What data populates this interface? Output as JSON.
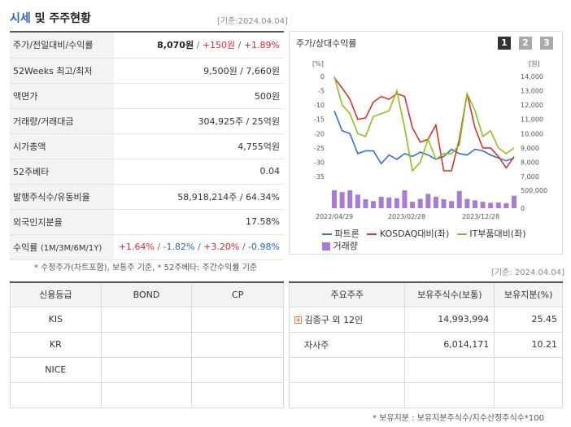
{
  "header": {
    "title_accent": "시세",
    "title_rest": " 및 주주현황",
    "date": "[기준:2024.04.04]"
  },
  "stock": {
    "rows": [
      {
        "label": "주가/전일대비/수익률"
      },
      {
        "label": "52Weeks 최고/최저",
        "value": "9,500원 / 7,660원"
      },
      {
        "label": "액면가",
        "value": "500원"
      },
      {
        "label": "거래량/거래대금",
        "value": "304,925주 / 25억원"
      },
      {
        "label": "시가총액",
        "value": "4,755억원"
      },
      {
        "label": "52주베타",
        "value": "0.04"
      },
      {
        "label": "발행주식수/유동비율",
        "value": "58,918,214주 / 64.34%"
      },
      {
        "label": "외국인지분율",
        "value": "17.58%"
      },
      {
        "label": "수익률",
        "label_sub": "(1M/3M/6M/1Y)"
      }
    ],
    "price": "8,070원",
    "sep": " / ",
    "change": "+150원",
    "change_pct": "+1.89%",
    "returns": [
      "+1.64%",
      "-1.82%",
      "+3.20%",
      "-0.98%"
    ],
    "note": "* 수정주가(차트포함), 보통주 기준, * 52주베타: 주간수익률 기준"
  },
  "chart": {
    "title": "주가/상대수익률",
    "pages": [
      "1",
      "2",
      "3"
    ],
    "left_unit": "[%]",
    "right_unit": "[원]",
    "left_ticks": [
      "0",
      "-5",
      "-10",
      "-15",
      "-20",
      "-25",
      "-30",
      "-35"
    ],
    "right_ticks": [
      "14,000",
      "13,000",
      "12,000",
      "11,000",
      "10,000",
      "9,000",
      "8,000",
      "7,000"
    ],
    "vol_ticks": [
      "500,000",
      "0"
    ],
    "x_ticks": [
      "2022/04/29",
      "2023/02/28",
      "2023/12/28"
    ],
    "legend": [
      "파트론",
      "KOSDAQ대비(좌)",
      "IT부품대비(좌)",
      "거래량"
    ],
    "colors": {
      "stock": "#2f6fd6",
      "kosdaq": "#d9342b",
      "it": "#8cc21c",
      "volume": "#a77bd6"
    }
  },
  "chart_data": {
    "type": "line",
    "x": [
      "2022/04/29",
      "",
      "",
      "",
      "",
      "",
      "",
      "",
      "",
      "",
      "",
      "",
      "",
      "",
      "",
      "",
      "",
      "",
      "",
      "",
      "",
      "",
      "",
      "2024/04/04"
    ],
    "series": [
      {
        "name": "파트론",
        "axis": "right",
        "values": [
          11600,
          10200,
          10000,
          8600,
          8800,
          8800,
          7900,
          8500,
          8200,
          8600,
          8400,
          8700,
          8500,
          8200,
          8400,
          8900,
          8600,
          8500,
          8900,
          8800,
          8500,
          8300,
          8100,
          8300
        ]
      },
      {
        "name": "KOSDAQ대비(좌)",
        "axis": "left",
        "values": [
          -0.5,
          -4,
          -8,
          -15,
          -14.5,
          -9,
          -7,
          -8,
          -6,
          -7,
          -18,
          -23,
          -22,
          -17,
          -33,
          -33,
          -22,
          -6,
          -18,
          -25,
          -25,
          -28,
          -32,
          -28
        ]
      },
      {
        "name": "IT부품대비(좌)",
        "axis": "left",
        "values": [
          0,
          -10,
          -13,
          -20,
          -21,
          -14,
          -13,
          -12,
          -5,
          -18,
          -33,
          -30,
          -22,
          -29,
          -27,
          -27,
          -24,
          -6,
          -12,
          -21,
          -19,
          -25,
          -27,
          -25
        ]
      },
      {
        "name": "거래량",
        "axis": "volume",
        "values": [
          600000,
          450000,
          500000,
          380000,
          250000,
          200000,
          320000,
          300000,
          280000,
          550000,
          180000,
          260000,
          400000,
          320000,
          250000,
          200000,
          480000,
          260000,
          220000,
          180000,
          150000,
          160000,
          140000,
          350000
        ]
      }
    ],
    "ylim_left": [
      -35,
      0
    ],
    "ylim_right": [
      7000,
      14000
    ],
    "ylim_volume": [
      0,
      500000
    ]
  },
  "bottom_right_date": "[기준: 2024.04.04]",
  "credit": {
    "headers": [
      "신용등급",
      "BOND",
      "CP"
    ],
    "rows": [
      {
        "agency": "KIS",
        "bond": "",
        "cp": ""
      },
      {
        "agency": "KR",
        "bond": "",
        "cp": ""
      },
      {
        "agency": "NICE",
        "bond": "",
        "cp": ""
      },
      {
        "agency": "",
        "bond": "",
        "cp": ""
      }
    ]
  },
  "holders": {
    "headers": [
      "주요주주",
      "보유주식수(보통)",
      "보유지분(%)"
    ],
    "rows": [
      {
        "name": "김종구 외 12인",
        "shares": "14,993,994",
        "pct": "25.45"
      },
      {
        "name": "자사주",
        "shares": "6,014,171",
        "pct": "10.21"
      },
      {
        "name": "",
        "shares": "",
        "pct": ""
      },
      {
        "name": "",
        "shares": "",
        "pct": ""
      }
    ],
    "note": "* 보유지분 : 보유지분주식수/지수산정주식수*100"
  }
}
